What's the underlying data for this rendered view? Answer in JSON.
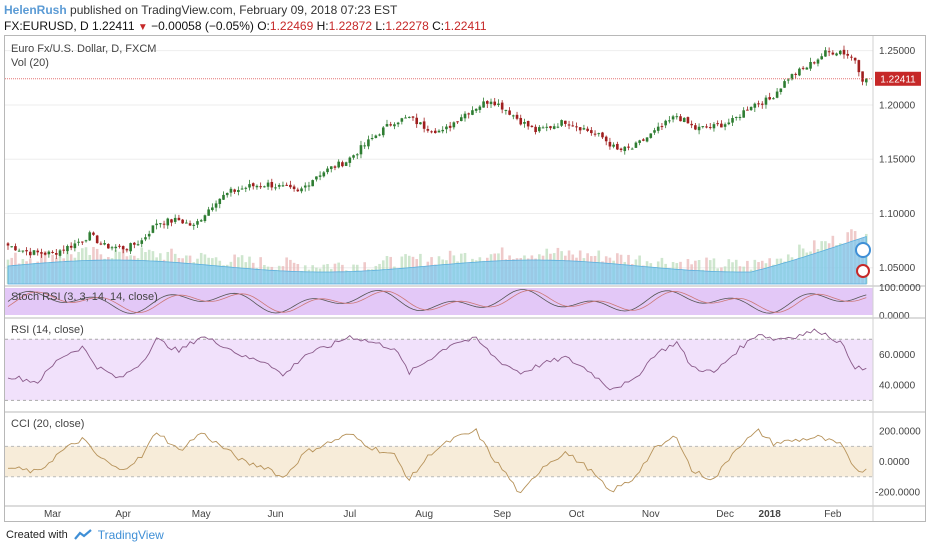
{
  "header": {
    "author": "HelenRush",
    "published_text": "published on TradingView.com, February 09, 2018 07:23 EST",
    "symbol": "FX:EURUSD, D",
    "last": "1.22411",
    "change": "−0.00058 (−0.05%)",
    "open_label": "O:",
    "open": "1.22469",
    "high_label": "H:",
    "high": "1.22872",
    "low_label": "L:",
    "low": "1.22278",
    "close_label": "C:",
    "close": "1.22411"
  },
  "footer": {
    "created_with": "Created with",
    "brand": "TradingView"
  },
  "colors": {
    "up": "#2e7d32",
    "down": "#a01f1f",
    "volume_area": "#7ec8ee",
    "stoch_bg": "#e3c8f7",
    "rsi_bg": "#f1e1fb",
    "cci_bg": "#f7ecd9",
    "price_line": "#e57373"
  },
  "chart_data": [
    {
      "type": "candlestick",
      "title": "Euro Fx/U.S. Dollar, D, FXCM",
      "subtitle": "Vol (20)",
      "ylim": [
        1.035,
        1.258
      ],
      "yticks": [
        "1.25000",
        "1.20000",
        "1.15000",
        "1.10000",
        "1.05000"
      ],
      "ytick_values": [
        1.25,
        1.2,
        1.15,
        1.1,
        1.05
      ],
      "last_price": "1.22411",
      "last_price_value": 1.22411,
      "x_labels": [
        "Mar",
        "Apr",
        "May",
        "Jun",
        "Jul",
        "Aug",
        "Sep",
        "Oct",
        "Nov",
        "Dec",
        "2018",
        "Feb"
      ],
      "close_path": [
        [
          0,
          1.0705
        ],
        [
          6,
          1.064
        ],
        [
          12,
          1.063
        ],
        [
          18,
          1.072
        ],
        [
          22,
          1.08
        ],
        [
          26,
          1.07
        ],
        [
          32,
          1.068
        ],
        [
          36,
          1.075
        ],
        [
          40,
          1.0915
        ],
        [
          46,
          1.094
        ],
        [
          50,
          1.088
        ],
        [
          56,
          1.112
        ],
        [
          60,
          1.12
        ],
        [
          65,
          1.125
        ],
        [
          70,
          1.127
        ],
        [
          75,
          1.123
        ],
        [
          78,
          1.119
        ],
        [
          83,
          1.135
        ],
        [
          87,
          1.142
        ],
        [
          91,
          1.148
        ],
        [
          95,
          1.16
        ],
        [
          100,
          1.175
        ],
        [
          104,
          1.185
        ],
        [
          108,
          1.188
        ],
        [
          112,
          1.18
        ],
        [
          117,
          1.175
        ],
        [
          122,
          1.19
        ],
        [
          126,
          1.198
        ],
        [
          130,
          1.205
        ],
        [
          134,
          1.196
        ],
        [
          138,
          1.185
        ],
        [
          142,
          1.176
        ],
        [
          146,
          1.18
        ],
        [
          150,
          1.185
        ],
        [
          155,
          1.178
        ],
        [
          160,
          1.17
        ],
        [
          164,
          1.158
        ],
        [
          168,
          1.16
        ],
        [
          172,
          1.17
        ],
        [
          176,
          1.18
        ],
        [
          180,
          1.19
        ],
        [
          185,
          1.178
        ],
        [
          190,
          1.18
        ],
        [
          195,
          1.185
        ],
        [
          200,
          1.2
        ],
        [
          205,
          1.205
        ],
        [
          210,
          1.225
        ],
        [
          215,
          1.235
        ],
        [
          220,
          1.248
        ],
        [
          224,
          1.25
        ],
        [
          228,
          1.242
        ],
        [
          230,
          1.2241
        ]
      ]
    },
    {
      "type": "line",
      "title": "Stoch RSI (3, 3, 14, 14, close)",
      "yticks": [
        "100.0000",
        "0.0000"
      ],
      "ylim": [
        0,
        100
      ]
    },
    {
      "type": "line",
      "title": "RSI (14, close)",
      "yticks": [
        "60.0000",
        "40.0000"
      ],
      "ylim": [
        25,
        80
      ],
      "band": [
        30,
        70
      ],
      "path": [
        [
          0,
          46
        ],
        [
          8,
          42
        ],
        [
          14,
          58
        ],
        [
          20,
          65
        ],
        [
          24,
          52
        ],
        [
          30,
          44
        ],
        [
          36,
          55
        ],
        [
          40,
          70
        ],
        [
          46,
          62
        ],
        [
          52,
          72
        ],
        [
          58,
          66
        ],
        [
          64,
          58
        ],
        [
          70,
          55
        ],
        [
          74,
          46
        ],
        [
          80,
          60
        ],
        [
          86,
          65
        ],
        [
          92,
          72
        ],
        [
          98,
          68
        ],
        [
          104,
          64
        ],
        [
          108,
          48
        ],
        [
          114,
          58
        ],
        [
          120,
          68
        ],
        [
          126,
          70
        ],
        [
          132,
          56
        ],
        [
          138,
          48
        ],
        [
          144,
          54
        ],
        [
          150,
          58
        ],
        [
          156,
          50
        ],
        [
          162,
          38
        ],
        [
          168,
          42
        ],
        [
          174,
          60
        ],
        [
          180,
          68
        ],
        [
          184,
          52
        ],
        [
          190,
          48
        ],
        [
          196,
          62
        ],
        [
          202,
          74
        ],
        [
          206,
          70
        ],
        [
          212,
          72
        ],
        [
          218,
          76
        ],
        [
          224,
          68
        ],
        [
          228,
          52
        ],
        [
          230,
          50
        ]
      ]
    },
    {
      "type": "line",
      "title": "CCI (20, close)",
      "yticks": [
        "200.0000",
        "0.0000",
        "-200.0000"
      ],
      "ylim": [
        -280,
        300
      ],
      "band": [
        -100,
        100
      ],
      "path": [
        [
          0,
          -40
        ],
        [
          8,
          -70
        ],
        [
          14,
          60
        ],
        [
          20,
          150
        ],
        [
          24,
          40
        ],
        [
          30,
          -60
        ],
        [
          36,
          30
        ],
        [
          40,
          200
        ],
        [
          46,
          70
        ],
        [
          52,
          190
        ],
        [
          58,
          90
        ],
        [
          64,
          -10
        ],
        [
          70,
          -40
        ],
        [
          74,
          -110
        ],
        [
          80,
          60
        ],
        [
          86,
          120
        ],
        [
          92,
          180
        ],
        [
          98,
          90
        ],
        [
          104,
          40
        ],
        [
          108,
          -120
        ],
        [
          114,
          60
        ],
        [
          120,
          150
        ],
        [
          126,
          200
        ],
        [
          130,
          40
        ],
        [
          134,
          -80
        ],
        [
          138,
          -220
        ],
        [
          144,
          -30
        ],
        [
          150,
          60
        ],
        [
          156,
          -40
        ],
        [
          162,
          -200
        ],
        [
          168,
          -120
        ],
        [
          174,
          80
        ],
        [
          180,
          170
        ],
        [
          184,
          -60
        ],
        [
          190,
          -120
        ],
        [
          196,
          90
        ],
        [
          202,
          200
        ],
        [
          206,
          120
        ],
        [
          212,
          140
        ],
        [
          218,
          160
        ],
        [
          224,
          110
        ],
        [
          228,
          -40
        ],
        [
          230,
          -60
        ]
      ]
    }
  ]
}
